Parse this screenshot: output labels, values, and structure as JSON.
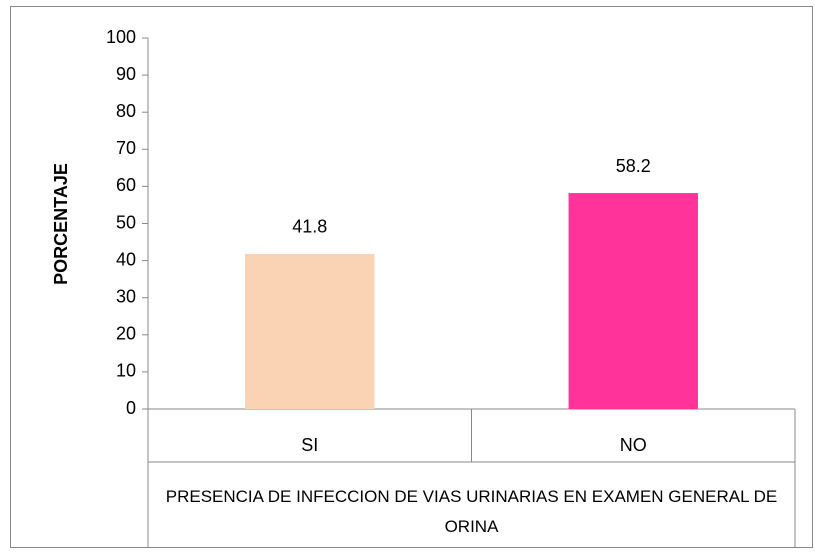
{
  "chart_data": {
    "type": "bar",
    "categories": [
      "SI",
      "NO"
    ],
    "values": [
      41.8,
      58.2
    ],
    "colors": [
      "#FAD3B4",
      "#FF3399"
    ],
    "y_label": "PORCENTAJE",
    "x_label": "PRESENCIA DE INFECCION DE VIAS URINARIAS EN EXAMEN GENERAL DE ORINA",
    "ylim": [
      0,
      100
    ],
    "yticks": [
      0,
      10,
      20,
      30,
      40,
      50,
      60,
      70,
      80,
      90,
      100
    ],
    "grid": false
  }
}
